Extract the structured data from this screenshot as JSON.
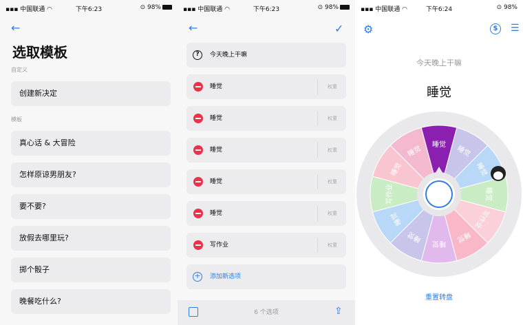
{
  "status": [
    {
      "carrier": "中国联通",
      "time": "下午6:23",
      "battery": "98%"
    },
    {
      "carrier": "中国联通",
      "time": "下午6:23",
      "battery": "98%"
    },
    {
      "carrier": "中国联通",
      "time": "下午6:24",
      "battery": "98%"
    }
  ],
  "p1": {
    "title": "选取模板",
    "custom_label": "自定义",
    "create_label": "创建新决定",
    "template_label": "模板",
    "templates": [
      "真心话 & 大冒险",
      "怎样原谅男朋友?",
      "要不要?",
      "放假去哪里玩?",
      "掷个骰子",
      "晚餐吃什么?"
    ]
  },
  "p2": {
    "question": "今天晚上干嘛",
    "options": [
      "睡觉",
      "睡觉",
      "睡觉",
      "睡觉",
      "睡觉",
      "写作业"
    ],
    "weight_label": "权重",
    "add_label": "添加新选项",
    "count_label": "6 个选项"
  },
  "p3": {
    "question": "今天晚上干嘛",
    "result": "睡觉",
    "reset_label": "重置转盘",
    "wheel_labels": [
      "睡觉",
      "睡觉",
      "睡觉",
      "睡觉",
      "写作业",
      "睡觉",
      "睡觉",
      "睡觉",
      "睡觉",
      "写作业",
      "睡觉",
      "睡觉"
    ],
    "wheel_colors": [
      "#8a1fb0",
      "#c7c6ea",
      "#b9d7f7",
      "#c9ecc4",
      "#fbd0d8",
      "#f9b8c8",
      "#e2b9ec",
      "#c7c6ea",
      "#b9d7f7",
      "#c9ecc4",
      "#f9c5d0",
      "#f4b9cf"
    ]
  },
  "colors": {
    "accent": "#2f7de1",
    "danger": "#e8334a"
  }
}
